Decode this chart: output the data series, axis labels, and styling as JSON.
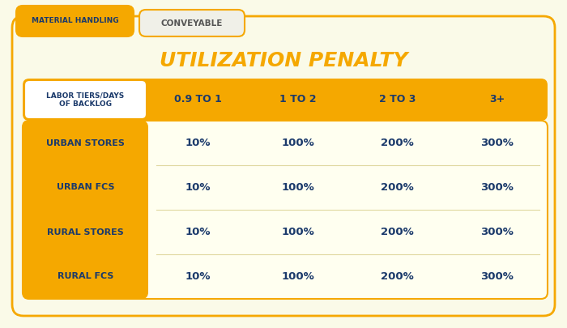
{
  "title": "UTILIZATION PENALTY",
  "title_color": "#F5A800",
  "title_fontsize": 18,
  "tab1_text": "MATERIAL HANDLING",
  "tab2_text": "CONVEYABLE",
  "tab1_bg": "#F5A800",
  "tab2_bg": "#f0f0e8",
  "tab1_text_color": "#1B3A6B",
  "tab2_text_color": "#555555",
  "header_bg": "#F5A800",
  "header_text_color": "#1B3A6B",
  "row_label_bg": "#F5A800",
  "row_label_text_color": "#1B3A6B",
  "data_bg": "#FFFFF0",
  "data_text_color": "#1B3A6B",
  "outer_bg": "#FAFAE8",
  "border_color": "#F5A800",
  "col_headers": [
    "LABOR TIERS/DAYS\nOF BACKLOG",
    "0.9 TO 1",
    "1 TO 2",
    "2 TO 3",
    "3+"
  ],
  "row_labels": [
    "URBAN STORES",
    "URBAN FCS",
    "RURAL STORES",
    "RURAL FCS"
  ],
  "data": [
    [
      "10%",
      "100%",
      "200%",
      "300%"
    ],
    [
      "10%",
      "100%",
      "200%",
      "300%"
    ],
    [
      "10%",
      "100%",
      "200%",
      "300%"
    ],
    [
      "10%",
      "100%",
      "200%",
      "300%"
    ]
  ]
}
